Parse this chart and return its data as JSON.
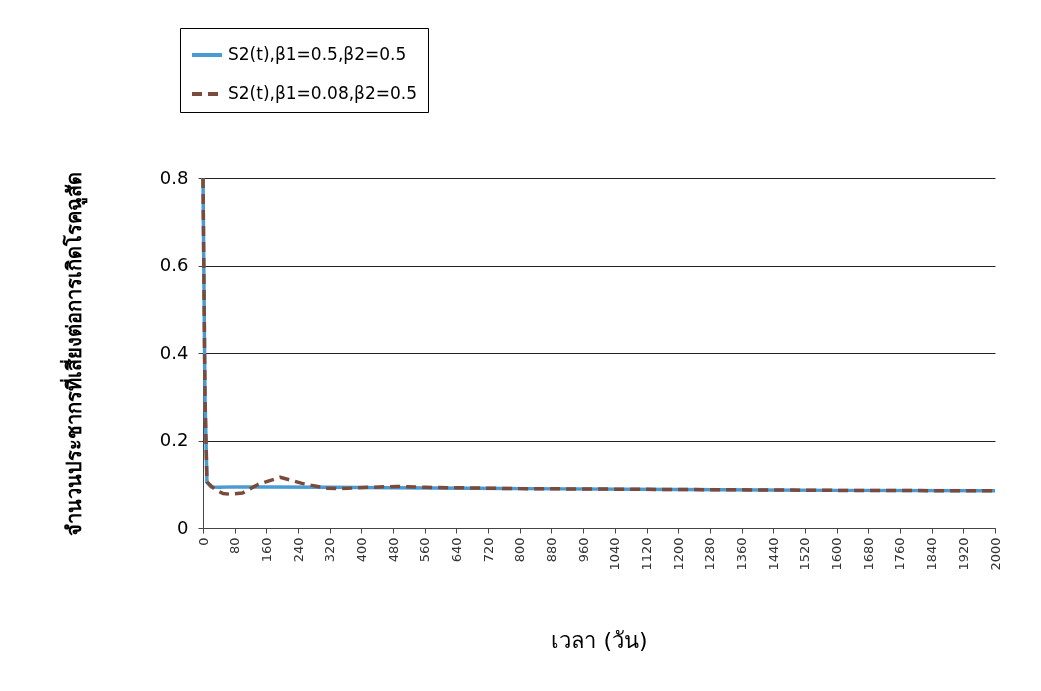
{
  "chart_data": {
    "type": "line",
    "xlabel": "เวลา (วัน)",
    "ylabel": "จำนวนประชากรที่เสี่ยงต่อการเกิดโรคฉูสัด",
    "xlim": [
      0,
      2000
    ],
    "xticks": [
      0,
      80,
      160,
      240,
      320,
      400,
      480,
      560,
      640,
      720,
      800,
      880,
      960,
      1040,
      1120,
      1200,
      1280,
      1360,
      1440,
      1520,
      1600,
      1680,
      1760,
      1840,
      1920,
      2000
    ],
    "ylim": [
      0,
      0.8
    ],
    "yticks": [
      0,
      0.2,
      0.4,
      0.6,
      0.8
    ],
    "grid": "y",
    "legend": "top left",
    "series": [
      {
        "name": "S2(t),β1=0.5,β2=0.5",
        "color": "#4a9bd4",
        "line_style": "solid",
        "x": [
          0,
          5,
          10,
          20,
          40,
          80,
          160,
          320,
          480,
          800,
          1200,
          1600,
          2000
        ],
        "values": [
          0.8,
          0.3,
          0.105,
          0.094,
          0.093,
          0.094,
          0.094,
          0.093,
          0.092,
          0.09,
          0.088,
          0.086,
          0.085
        ]
      },
      {
        "name": "S2(t),β1=0.08,β2=0.5",
        "color": "#7b4a3a",
        "line_style": "dashed",
        "x": [
          0,
          5,
          10,
          30,
          50,
          70,
          100,
          140,
          195,
          250,
          310,
          350,
          420,
          490,
          560,
          800,
          1200,
          1600,
          2000
        ],
        "values": [
          0.8,
          0.3,
          0.105,
          0.088,
          0.079,
          0.077,
          0.08,
          0.1,
          0.116,
          0.102,
          0.091,
          0.09,
          0.093,
          0.095,
          0.093,
          0.09,
          0.088,
          0.086,
          0.085
        ]
      }
    ]
  }
}
